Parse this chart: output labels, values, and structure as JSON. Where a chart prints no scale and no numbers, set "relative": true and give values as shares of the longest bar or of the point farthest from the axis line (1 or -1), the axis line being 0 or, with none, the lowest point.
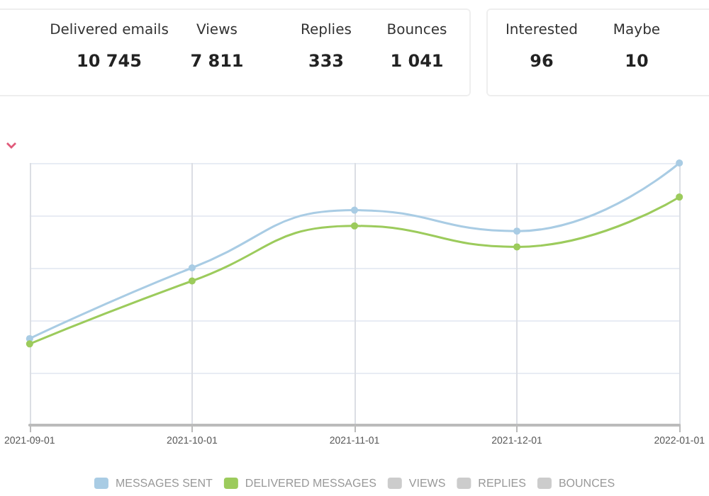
{
  "chart_data": {
    "type": "line",
    "relative": true,
    "categories": [
      "2021-09-01",
      "2021-10-01",
      "2021-11-01",
      "2021-12-01",
      "2022-01-01"
    ],
    "series": [
      {
        "name": "MESSAGES SENT",
        "color": "#a9cce4",
        "values": [
          0.33,
          0.6,
          0.82,
          0.74,
          1
        ]
      },
      {
        "name": "DELIVERED MESSAGES",
        "color": "#9ccb5c",
        "values": [
          0.31,
          0.55,
          0.76,
          0.68,
          0.87
        ]
      },
      {
        "name": "VIEWS",
        "color": "#cccccc",
        "values": [
          null,
          null,
          null,
          null,
          null
        ]
      },
      {
        "name": "REPLIES",
        "color": "#cccccc",
        "values": [
          null,
          null,
          null,
          null,
          null
        ]
      },
      {
        "name": "BOUNCES",
        "color": "#cccccc",
        "values": [
          null,
          null,
          null,
          null,
          null
        ]
      }
    ],
    "annotations": [
      "Delivered emails",
      "10 745",
      "Views",
      "7 811",
      "Replies",
      "333",
      "Bounces",
      "1 041",
      "Interested",
      "96",
      "Maybe",
      "10"
    ],
    "grid": true,
    "legend": "bottom",
    "marker": "circle",
    "line_style": "solid"
  }
}
